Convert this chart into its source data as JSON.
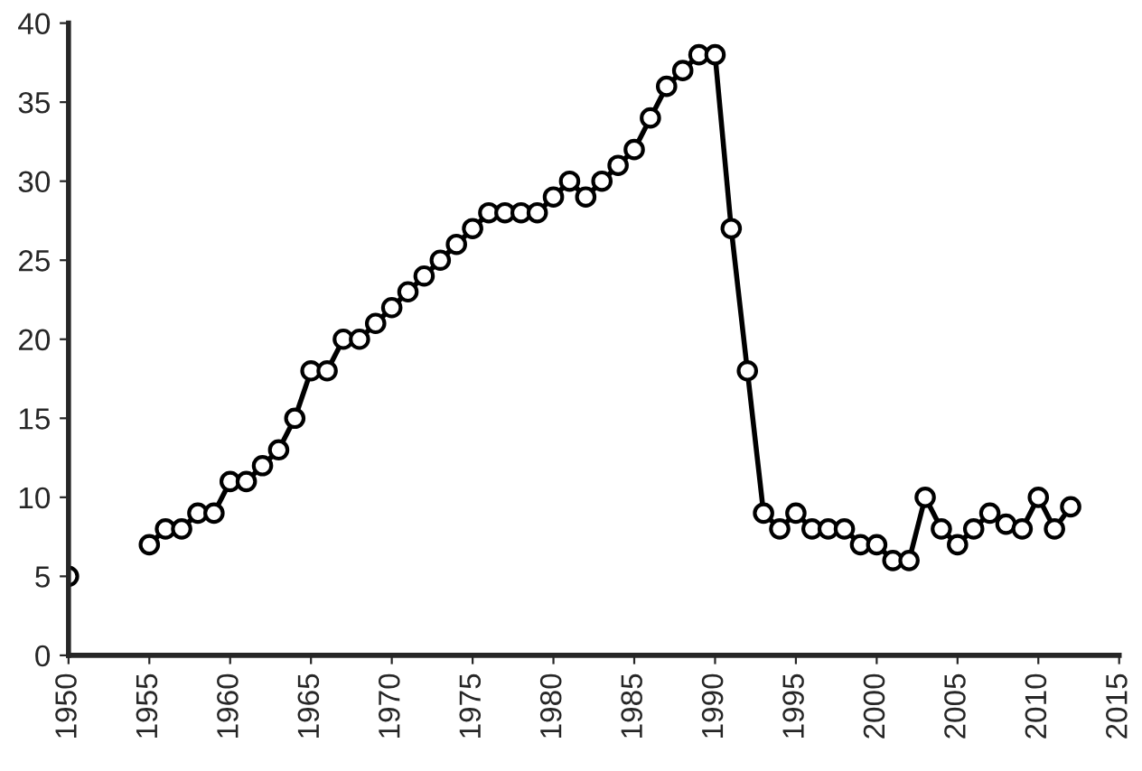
{
  "chart_data": {
    "type": "line",
    "x": [
      1950,
      1951,
      1952,
      1953,
      1954,
      1955,
      1956,
      1957,
      1958,
      1959,
      1960,
      1961,
      1962,
      1963,
      1964,
      1965,
      1966,
      1967,
      1968,
      1969,
      1970,
      1971,
      1972,
      1973,
      1974,
      1975,
      1976,
      1977,
      1978,
      1979,
      1980,
      1981,
      1982,
      1983,
      1984,
      1985,
      1986,
      1987,
      1988,
      1989,
      1990,
      1991,
      1992,
      1993,
      1994,
      1995,
      1996,
      1997,
      1998,
      1999,
      2000,
      2001,
      2002,
      2003,
      2004,
      2005,
      2006,
      2007,
      2008,
      2009,
      2010,
      2011,
      2012
    ],
    "series": [
      {
        "color": "#000000",
        "values": [
          5,
          null,
          null,
          null,
          null,
          7,
          8,
          8,
          9,
          9,
          11,
          11,
          12,
          13,
          15,
          18,
          18,
          20,
          20,
          21,
          22,
          23,
          24,
          25,
          26,
          27,
          28,
          28,
          28,
          28,
          29,
          30,
          29,
          30,
          31,
          32,
          34,
          36,
          37,
          38,
          38,
          27,
          18,
          9,
          8,
          9,
          8,
          8,
          8,
          7,
          7,
          6,
          6,
          10,
          8,
          7,
          8,
          9,
          8.3,
          8,
          10,
          8,
          9.4
        ]
      }
    ],
    "xlim": [
      1950,
      2015
    ],
    "xticks": [
      1950,
      1955,
      1960,
      1965,
      1970,
      1975,
      1980,
      1985,
      1990,
      1995,
      2000,
      2005,
      2010,
      2015
    ],
    "ylim": [
      0,
      40
    ],
    "yticks": [
      0,
      5,
      10,
      15,
      20,
      25,
      30,
      35,
      40
    ],
    "grid": false,
    "legend": false,
    "marker": "circle",
    "line_style": "solid"
  }
}
